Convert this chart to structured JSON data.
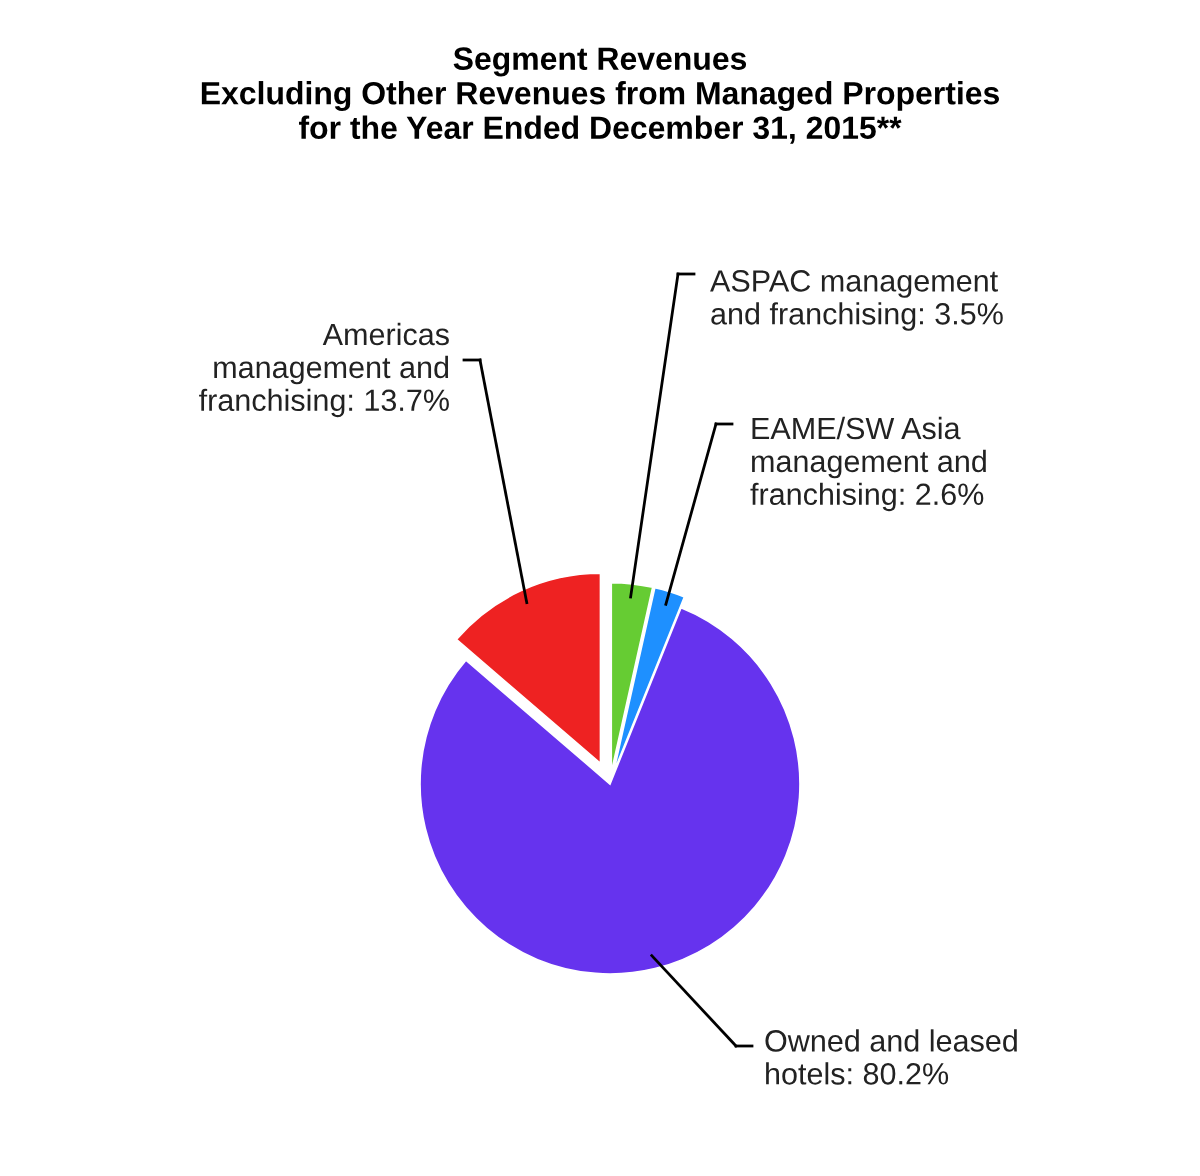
{
  "chart_data": {
    "type": "pie",
    "title": "Segment Revenues\nExcluding Other Revenues from Managed Properties\nfor the Year Ended December 31, 2015**",
    "categories": [
      "ASPAC management\nand franchising",
      "EAME/SW Asia\nmanagement and\nfranchising",
      "Owned and leased\nhotels",
      "Americas\nmanagement and\nfranchising"
    ],
    "values": [
      3.5,
      2.6,
      80.2,
      13.7
    ],
    "value_labels": [
      "3.5%",
      "2.6%",
      "80.2%",
      "13.7%"
    ],
    "colors": [
      "#66cc33",
      "#1e90ff",
      "#6633ee",
      "#ee2222"
    ],
    "legend": false
  }
}
